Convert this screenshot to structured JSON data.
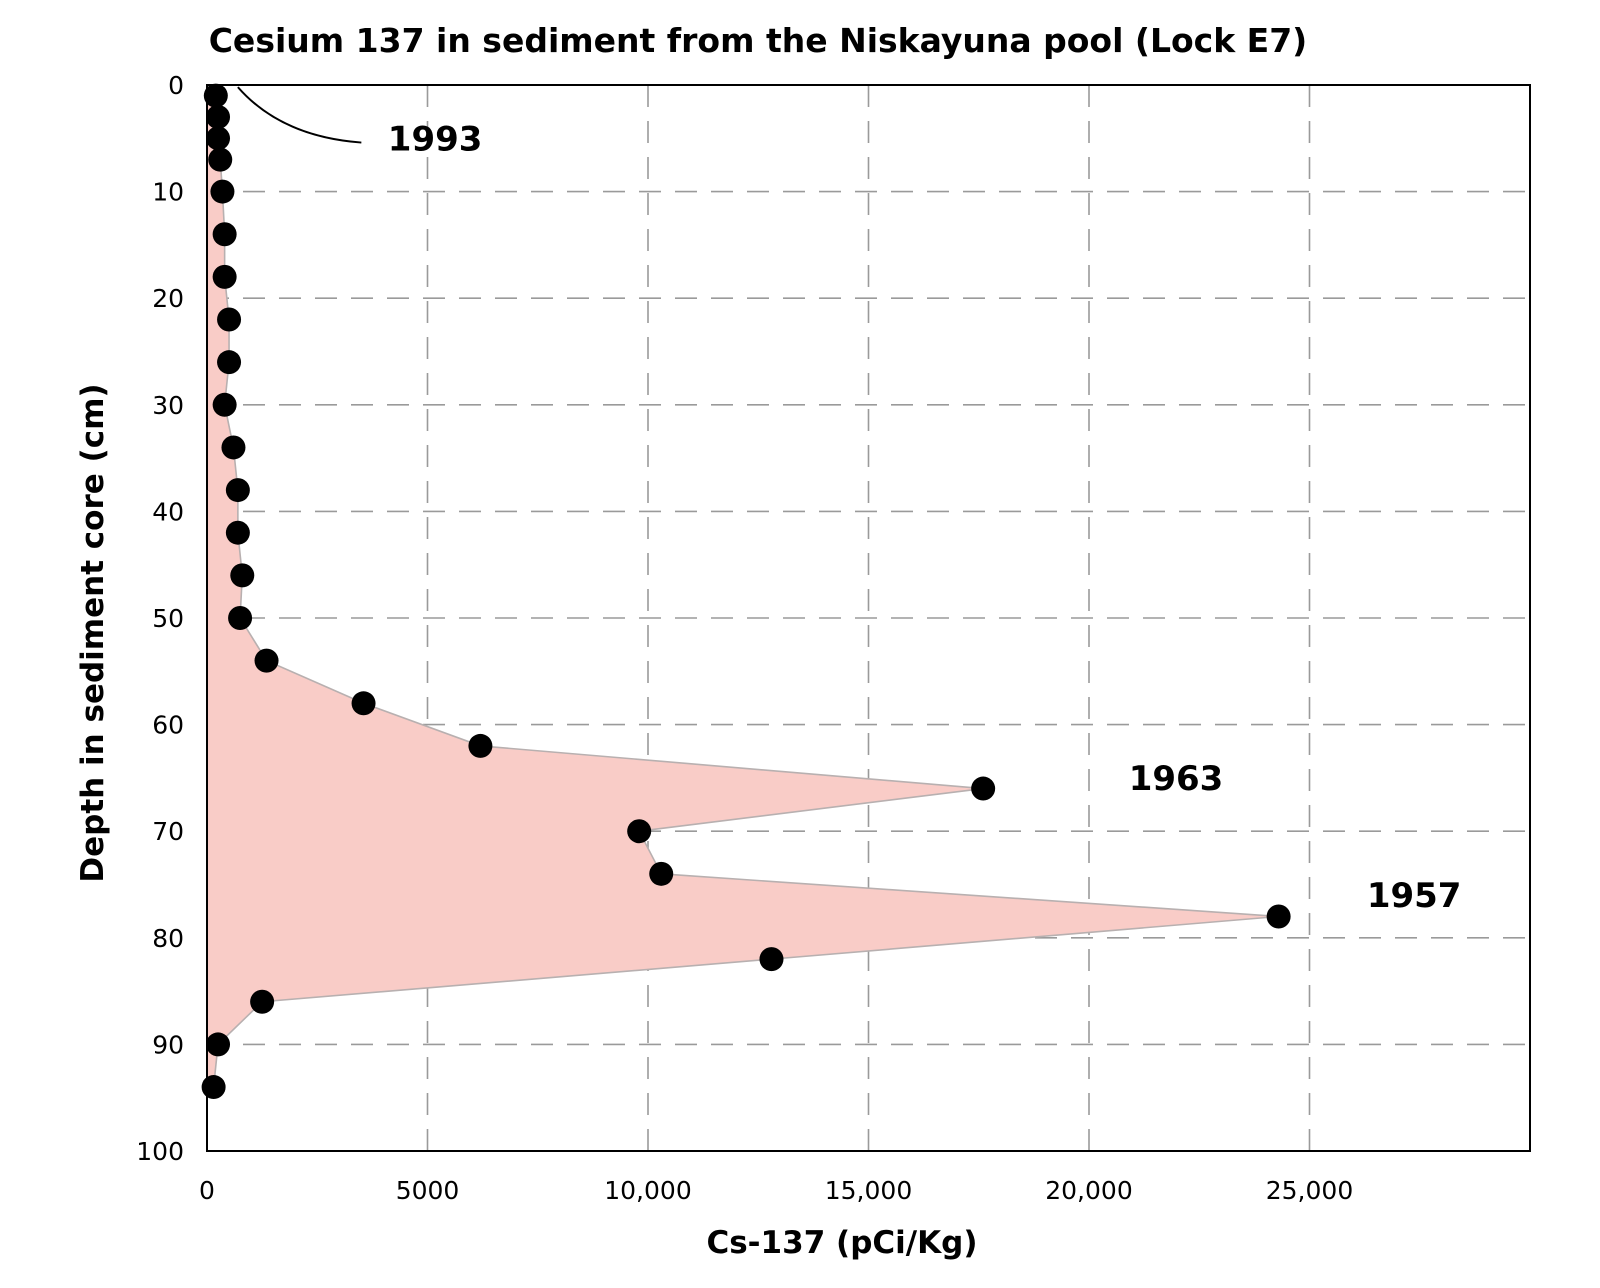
{
  "chart_data": {
    "type": "area",
    "title": "Cesium 137 in sediment from the Niskayuna pool (Lock E7)",
    "xlabel": "Cs-137 (pCi/Kg)",
    "ylabel": "Depth in sediment core (cm)",
    "xlim": [
      0,
      30000
    ],
    "ylim": [
      0,
      100
    ],
    "y_inverted": true,
    "grid": true,
    "x_ticks": [
      {
        "value": 0,
        "label": "0"
      },
      {
        "value": 5000,
        "label": "5000"
      },
      {
        "value": 10000,
        "label": "10,000"
      },
      {
        "value": 15000,
        "label": "15,000"
      },
      {
        "value": 20000,
        "label": "20,000"
      },
      {
        "value": 25000,
        "label": "25,000"
      }
    ],
    "y_ticks": [
      {
        "value": 0,
        "label": "0"
      },
      {
        "value": 10,
        "label": "10"
      },
      {
        "value": 20,
        "label": "20"
      },
      {
        "value": 30,
        "label": "30"
      },
      {
        "value": 40,
        "label": "40"
      },
      {
        "value": 50,
        "label": "50"
      },
      {
        "value": 60,
        "label": "60"
      },
      {
        "value": 70,
        "label": "70"
      },
      {
        "value": 80,
        "label": "80"
      },
      {
        "value": 90,
        "label": "90"
      },
      {
        "value": 100,
        "label": "100"
      }
    ],
    "points": [
      {
        "x": 200,
        "y": 1
      },
      {
        "x": 250,
        "y": 3
      },
      {
        "x": 250,
        "y": 5
      },
      {
        "x": 300,
        "y": 7
      },
      {
        "x": 350,
        "y": 10
      },
      {
        "x": 400,
        "y": 14
      },
      {
        "x": 400,
        "y": 18
      },
      {
        "x": 500,
        "y": 22
      },
      {
        "x": 500,
        "y": 26
      },
      {
        "x": 400,
        "y": 30
      },
      {
        "x": 600,
        "y": 34
      },
      {
        "x": 700,
        "y": 38
      },
      {
        "x": 700,
        "y": 42
      },
      {
        "x": 800,
        "y": 46
      },
      {
        "x": 750,
        "y": 50
      },
      {
        "x": 1350,
        "y": 54
      },
      {
        "x": 3550,
        "y": 58
      },
      {
        "x": 6200,
        "y": 62
      },
      {
        "x": 17600,
        "y": 66
      },
      {
        "x": 9800,
        "y": 70
      },
      {
        "x": 10300,
        "y": 74
      },
      {
        "x": 24300,
        "y": 78
      },
      {
        "x": 12800,
        "y": 82
      },
      {
        "x": 1250,
        "y": 86
      },
      {
        "x": 250,
        "y": 90
      },
      {
        "x": 150,
        "y": 94
      }
    ],
    "annotations": [
      {
        "text": "1993",
        "x": 4100,
        "y": 5,
        "leader_from": {
          "x": 700,
          "y": 0.2
        },
        "leader_to": {
          "x": 3500,
          "y": 5.4
        }
      },
      {
        "text": "1963",
        "x": 20900,
        "y": 65
      },
      {
        "text": "1957",
        "x": 26300,
        "y": 76
      }
    ],
    "colors": {
      "fill": "#f9ccc7",
      "outline": "#b8b0b0",
      "points": "#000000",
      "grid": "#9a9a9a"
    }
  }
}
